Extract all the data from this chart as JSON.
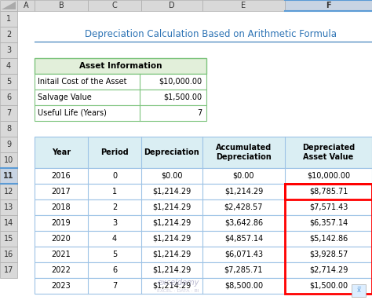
{
  "title": "Depreciation Calculation Based on Arithmetic Formula",
  "title_color": "#2E74B5",
  "bg_color": "#FFFFFF",
  "excel_col_labels": [
    "A",
    "B",
    "C",
    "D",
    "E",
    "F"
  ],
  "asset_info_header": "Asset Information",
  "asset_info_header_bg": "#E2EFDA",
  "asset_info_border": "#7DC47D",
  "asset_rows": [
    [
      "Initail Cost of the Asset",
      "$10,000.00"
    ],
    [
      "Salvage Value",
      "$1,500.00"
    ],
    [
      "Useful Life (Years)",
      "7"
    ]
  ],
  "main_table_headers": [
    "Year",
    "Period",
    "Depreciation",
    "Accumulated\nDepreciation",
    "Depreciated\nAsset Value"
  ],
  "main_table_header_bg": "#DAEEF3",
  "main_table_border": "#9DC3E6",
  "main_table_data": [
    [
      "2016",
      "0",
      "$0.00",
      "$0.00",
      "$10,000.00"
    ],
    [
      "2017",
      "1",
      "$1,214.29",
      "$1,214.29",
      "$8,785.71"
    ],
    [
      "2018",
      "2",
      "$1,214.29",
      "$2,428.57",
      "$7,571.43"
    ],
    [
      "2019",
      "3",
      "$1,214.29",
      "$3,642.86",
      "$6,357.14"
    ],
    [
      "2020",
      "4",
      "$1,214.29",
      "$4,857.14",
      "$5,142.86"
    ],
    [
      "2021",
      "5",
      "$1,214.29",
      "$6,071.43",
      "$3,928.57"
    ],
    [
      "2022",
      "6",
      "$1,214.29",
      "$7,285.71",
      "$2,714.29"
    ],
    [
      "2023",
      "7",
      "$1,214.29",
      "$8,500.00",
      "$1,500.00"
    ]
  ],
  "highlight_border_color": "#FF0000",
  "col_header_bg": "#D9D9D9",
  "col_header_selected_bg": "#C8D4E3",
  "row_header_bg": "#D9D9D9",
  "row_header_selected_bg": "#C8D4E3",
  "watermark_color": "#9999BB"
}
